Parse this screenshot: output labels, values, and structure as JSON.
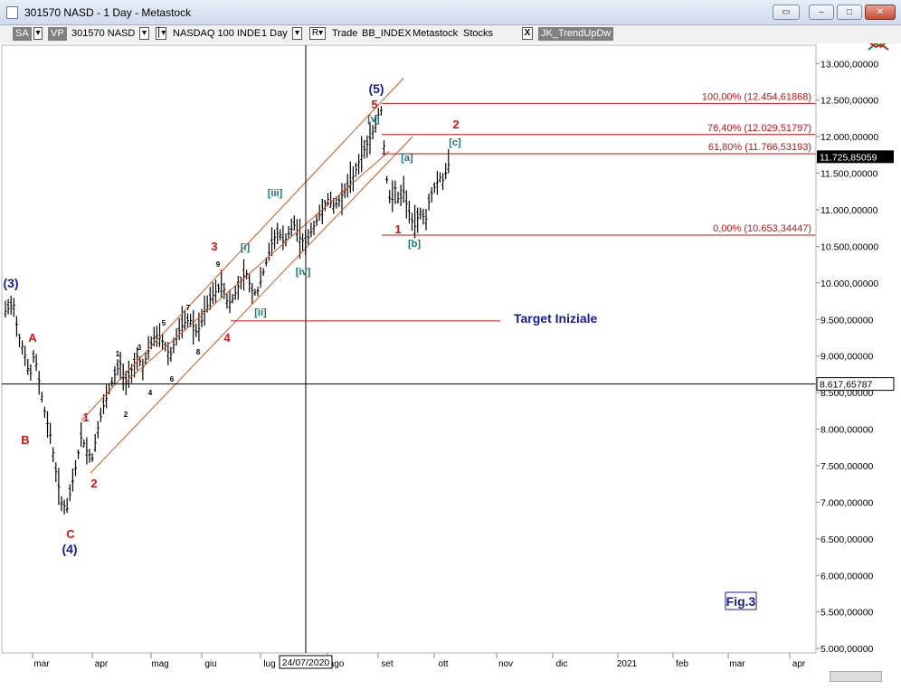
{
  "window": {
    "title": "301570 NASD - 1 Day - Metastock",
    "buttons": [
      "▭",
      "‒",
      "□",
      "✕"
    ]
  },
  "toolbar": {
    "sa": "SA",
    "vp": "VP",
    "symbol": "301570 NASD",
    "instrument": "NASDAQ 100 INDE",
    "period": "1 Day",
    "menu1": "Trade",
    "menu2": "BB_INDEX",
    "menu3": "Metastock",
    "menu4": "Stocks",
    "close_x": "X",
    "indicator": "JK_TrendUpDw"
  },
  "chart_data": {
    "type": "bar",
    "title": "",
    "xlabel": "",
    "ylabel": "",
    "ylim": [
      5000,
      13000
    ],
    "y_ticks": [
      "13.000,00000",
      "12.500,00000",
      "12.000,00000",
      "11.500,00000",
      "11.000,00000",
      "10.500,00000",
      "10.000,00000",
      "9.500,00000",
      "9.000,00000",
      "8.500,00000",
      "8.000,00000",
      "7.500,00000",
      "7.000,00000",
      "6.500,00000",
      "6.000,00000",
      "5.500,00000",
      "5.000,00000"
    ],
    "x_ticks": [
      "mar",
      "apr",
      "mag",
      "giu",
      "lug",
      "ago",
      "set",
      "ott",
      "nov",
      "dic",
      "2021",
      "feb",
      "mar",
      "apr"
    ],
    "price_series_close_sample": [
      [
        "feb-end",
        9600
      ],
      [
        "mar-mid",
        7500
      ],
      [
        "mar-23",
        6800
      ],
      [
        "apr-mid",
        8600
      ],
      [
        "mag-start",
        8700
      ],
      [
        "mag-mid",
        9100
      ],
      [
        "giu-start",
        9700
      ],
      [
        "giu-mid",
        10100
      ],
      [
        "lug-mid",
        10700
      ],
      [
        "lug-24",
        10500
      ],
      [
        "ago-start",
        10900
      ],
      [
        "ago-mid",
        11300
      ],
      [
        "set-02",
        12420
      ],
      [
        "set-08",
        11000
      ],
      [
        "set-mid",
        11300
      ],
      [
        "set-23",
        10700
      ],
      [
        "ott-01",
        11300
      ],
      [
        "ott-12",
        11725
      ]
    ],
    "last_price_label": "11.725,85059",
    "crosshair": {
      "date_label": "24/07/2020",
      "price_label": "8.617,65787",
      "price": 8617.66
    },
    "fibonacci_levels": [
      {
        "label": "100,00% (12.454,61868)",
        "value": 12454.62
      },
      {
        "label": "76,40% (12.029,51797)",
        "value": 12029.52
      },
      {
        "label": "61,80% (11.766,53193)",
        "value": 11766.53
      },
      {
        "label": "0,00% (10.653,34447)",
        "value": 10653.34
      }
    ],
    "target_line": {
      "label": "Target Iniziale",
      "value": 9480
    },
    "annotations": {
      "blue": [
        "(3)",
        "(4)",
        "(5)"
      ],
      "red": [
        "A",
        "B",
        "C",
        "1",
        "2",
        "3",
        "4",
        "5",
        "1",
        "2"
      ],
      "teal": [
        "[i]",
        "[ii]",
        "[iii]",
        "[iv]",
        "[v]",
        "[a]",
        "[b]",
        "[c]"
      ],
      "black": [
        "1",
        "2",
        "3",
        "4",
        "5",
        "6",
        "7",
        "8",
        "9"
      ]
    },
    "figure_label": "Fig.3"
  },
  "colors": {
    "wave_blue": "#1a1aa0",
    "wave_red": "#e01010",
    "wave_teal": "#127878",
    "axis_red": "#cc1010",
    "channel": "#e0541a"
  }
}
